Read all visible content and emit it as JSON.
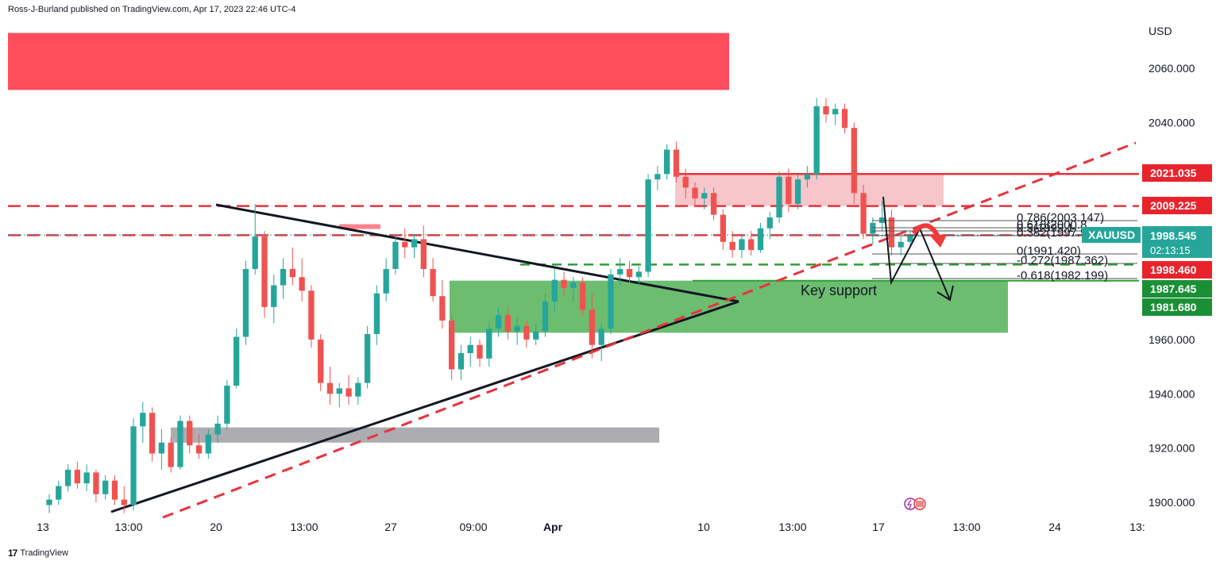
{
  "header": {
    "attribution": "Ross-J-Burland published on TradingView.com, Apr 17, 2023 22:46 UTC-4"
  },
  "footer": {
    "logo_mark": "17",
    "logo_text": "TradingView"
  },
  "colors": {
    "bull": "#26a69a",
    "bear": "#ef5350",
    "red_zone": "#ff4d5e",
    "pink_zone": "#f7c6cb",
    "green_zone": "#4caf50",
    "grey_zone": "#9e9ea3",
    "red_line": "#e8323c",
    "green_dash": "#2f9d35",
    "price_tag_red": "#e8232c",
    "price_tag_green": "#1b8f36",
    "price_tag_teal": "#26a69a"
  },
  "chart_data": {
    "type": "candlestick",
    "symbol": "XAUUSD",
    "currency": "USD",
    "current_price": "1998.545",
    "countdown": "02:13:15",
    "ylim": [
      1895,
      2070
    ],
    "y_ticks": [
      {
        "value": 2060,
        "label": "2060.000"
      },
      {
        "value": 2040,
        "label": "2040.000"
      },
      {
        "value": 1960,
        "label": "1960.000"
      },
      {
        "value": 1940,
        "label": "1940.000"
      },
      {
        "value": 1920,
        "label": "1920.000"
      },
      {
        "value": 1900,
        "label": "1900.000"
      }
    ],
    "x_ticks": [
      {
        "label": "13",
        "bold": false
      },
      {
        "label": "13:00",
        "bold": false
      },
      {
        "label": "20",
        "bold": false
      },
      {
        "label": "13:00",
        "bold": false
      },
      {
        "label": "27",
        "bold": false
      },
      {
        "label": "09:00",
        "bold": false
      },
      {
        "label": "Apr",
        "bold": true
      },
      {
        "label": "10",
        "bold": false
      },
      {
        "label": "13:00",
        "bold": false
      },
      {
        "label": "17",
        "bold": false
      },
      {
        "label": "13:00",
        "bold": false
      },
      {
        "label": "24",
        "bold": false
      },
      {
        "label": "13:",
        "bold": false
      }
    ],
    "price_tags": [
      {
        "label": "2021.035",
        "value": 2021.035,
        "color": "red"
      },
      {
        "label": "2009.225",
        "value": 2009.225,
        "color": "red"
      },
      {
        "label": "1998.460",
        "value": 1998.46,
        "color": "red"
      },
      {
        "label": "1987.645",
        "value": 1987.645,
        "color": "green"
      },
      {
        "label": "1981.680",
        "value": 1981.68,
        "color": "green"
      }
    ],
    "fib_levels": [
      {
        "ratio": "0.786",
        "price": "2003.147",
        "text": "0.786(2003.147)"
      },
      {
        "ratio": "0.618",
        "price": "2000.8",
        "text": "0.618(2000.8"
      },
      {
        "ratio": "0.5",
        "price": "1999.1",
        "text": "0.5(1999.1"
      },
      {
        "ratio": "0.382",
        "price": "1997.5",
        "text": "0.382(1997.5"
      },
      {
        "ratio": "0",
        "price": "1991.420",
        "text": "0(1991.420)"
      },
      {
        "ratio": "-0.272",
        "price": "1987.362",
        "text": "-0.272(1987.362)"
      },
      {
        "ratio": "-0.618",
        "price": "1982.199",
        "text": "-0.618(1982.199)"
      }
    ],
    "annotations": [
      {
        "text": "Key support"
      }
    ],
    "zones": [
      {
        "name": "supply-zone",
        "from": 2052,
        "to": 2073
      },
      {
        "name": "resistance-zone",
        "from": 2009.2,
        "to": 2021.1
      },
      {
        "name": "support-zone",
        "from": 1962.5,
        "to": 1981.7
      },
      {
        "name": "demand-zone",
        "from": 1922,
        "to": 1927.6
      }
    ],
    "horizontal_lines": [
      {
        "name": "resistance-line",
        "value": 2021.035,
        "style": "solid"
      },
      {
        "name": "red-dashed-upper",
        "value": 2009.225,
        "style": "dashed"
      },
      {
        "name": "red-dashed-lower",
        "value": 1998.46,
        "style": "dashed"
      },
      {
        "name": "green-dashed-line",
        "value": 1987.645,
        "style": "dashed"
      },
      {
        "name": "green-solid-line",
        "value": 1981.68,
        "style": "solid"
      }
    ],
    "candles": [
      {
        "o": 1899,
        "h": 1903,
        "l": 1896,
        "c": 1901
      },
      {
        "o": 1901,
        "h": 1908,
        "l": 1899,
        "c": 1906
      },
      {
        "o": 1906,
        "h": 1914,
        "l": 1904,
        "c": 1912
      },
      {
        "o": 1912,
        "h": 1915,
        "l": 1905,
        "c": 1907
      },
      {
        "o": 1907,
        "h": 1914,
        "l": 1904,
        "c": 1911
      },
      {
        "o": 1911,
        "h": 1912,
        "l": 1900,
        "c": 1903
      },
      {
        "o": 1903,
        "h": 1910,
        "l": 1901,
        "c": 1908
      },
      {
        "o": 1908,
        "h": 1910,
        "l": 1899,
        "c": 1901
      },
      {
        "o": 1901,
        "h": 1906,
        "l": 1896,
        "c": 1899
      },
      {
        "o": 1899,
        "h": 1931,
        "l": 1897,
        "c": 1928
      },
      {
        "o": 1928,
        "h": 1937,
        "l": 1922,
        "c": 1933
      },
      {
        "o": 1933,
        "h": 1935,
        "l": 1915,
        "c": 1918
      },
      {
        "o": 1918,
        "h": 1927,
        "l": 1912,
        "c": 1922
      },
      {
        "o": 1922,
        "h": 1924,
        "l": 1911,
        "c": 1913
      },
      {
        "o": 1913,
        "h": 1932,
        "l": 1912,
        "c": 1930
      },
      {
        "o": 1930,
        "h": 1932,
        "l": 1918,
        "c": 1921
      },
      {
        "o": 1921,
        "h": 1925,
        "l": 1916,
        "c": 1918
      },
      {
        "o": 1918,
        "h": 1927,
        "l": 1916,
        "c": 1925
      },
      {
        "o": 1925,
        "h": 1932,
        "l": 1922,
        "c": 1929
      },
      {
        "o": 1929,
        "h": 1945,
        "l": 1927,
        "c": 1943
      },
      {
        "o": 1943,
        "h": 1964,
        "l": 1942,
        "c": 1961
      },
      {
        "o": 1961,
        "h": 1989,
        "l": 1958,
        "c": 1986
      },
      {
        "o": 1986,
        "h": 2010,
        "l": 1984,
        "c": 1998
      },
      {
        "o": 1998,
        "h": 2000,
        "l": 1968,
        "c": 1972
      },
      {
        "o": 1972,
        "h": 1984,
        "l": 1966,
        "c": 1980
      },
      {
        "o": 1980,
        "h": 1990,
        "l": 1975,
        "c": 1986
      },
      {
        "o": 1986,
        "h": 1994,
        "l": 1980,
        "c": 1983
      },
      {
        "o": 1983,
        "h": 1990,
        "l": 1974,
        "c": 1978
      },
      {
        "o": 1978,
        "h": 1980,
        "l": 1957,
        "c": 1960
      },
      {
        "o": 1960,
        "h": 1962,
        "l": 1941,
        "c": 1944
      },
      {
        "o": 1944,
        "h": 1950,
        "l": 1936,
        "c": 1940
      },
      {
        "o": 1940,
        "h": 1944,
        "l": 1935,
        "c": 1942
      },
      {
        "o": 1942,
        "h": 1947,
        "l": 1936,
        "c": 1939
      },
      {
        "o": 1939,
        "h": 1946,
        "l": 1936,
        "c": 1944
      },
      {
        "o": 1944,
        "h": 1965,
        "l": 1942,
        "c": 1962
      },
      {
        "o": 1962,
        "h": 1980,
        "l": 1958,
        "c": 1977
      },
      {
        "o": 1977,
        "h": 1990,
        "l": 1974,
        "c": 1986
      },
      {
        "o": 1986,
        "h": 1998,
        "l": 1984,
        "c": 1996
      },
      {
        "o": 1996,
        "h": 2001,
        "l": 1990,
        "c": 1994
      },
      {
        "o": 1994,
        "h": 1999,
        "l": 1990,
        "c": 1997
      },
      {
        "o": 1997,
        "h": 2002,
        "l": 1983,
        "c": 1986
      },
      {
        "o": 1986,
        "h": 1990,
        "l": 1974,
        "c": 1976
      },
      {
        "o": 1976,
        "h": 1982,
        "l": 1964,
        "c": 1967
      },
      {
        "o": 1967,
        "h": 1969,
        "l": 1945,
        "c": 1949
      },
      {
        "o": 1949,
        "h": 1958,
        "l": 1945,
        "c": 1955
      },
      {
        "o": 1955,
        "h": 1961,
        "l": 1950,
        "c": 1958
      },
      {
        "o": 1958,
        "h": 1960,
        "l": 1950,
        "c": 1953
      },
      {
        "o": 1953,
        "h": 1966,
        "l": 1950,
        "c": 1964
      },
      {
        "o": 1964,
        "h": 1972,
        "l": 1961,
        "c": 1969
      },
      {
        "o": 1969,
        "h": 1972,
        "l": 1960,
        "c": 1963
      },
      {
        "o": 1963,
        "h": 1968,
        "l": 1958,
        "c": 1965
      },
      {
        "o": 1965,
        "h": 1967,
        "l": 1957,
        "c": 1960
      },
      {
        "o": 1960,
        "h": 1966,
        "l": 1958,
        "c": 1963
      },
      {
        "o": 1963,
        "h": 1977,
        "l": 1961,
        "c": 1974
      },
      {
        "o": 1974,
        "h": 1986,
        "l": 1970,
        "c": 1982
      },
      {
        "o": 1982,
        "h": 1985,
        "l": 1976,
        "c": 1979
      },
      {
        "o": 1979,
        "h": 1983,
        "l": 1974,
        "c": 1981
      },
      {
        "o": 1981,
        "h": 1983,
        "l": 1969,
        "c": 1971
      },
      {
        "o": 1971,
        "h": 1977,
        "l": 1953,
        "c": 1958
      },
      {
        "o": 1958,
        "h": 1966,
        "l": 1952,
        "c": 1964
      },
      {
        "o": 1964,
        "h": 1986,
        "l": 1962,
        "c": 1984
      },
      {
        "o": 1984,
        "h": 1990,
        "l": 1980,
        "c": 1986
      },
      {
        "o": 1986,
        "h": 1989,
        "l": 1981,
        "c": 1983
      },
      {
        "o": 1983,
        "h": 1987,
        "l": 1980,
        "c": 1985
      },
      {
        "o": 1985,
        "h": 2021,
        "l": 1983,
        "c": 2019
      },
      {
        "o": 2019,
        "h": 2024,
        "l": 2015,
        "c": 2021
      },
      {
        "o": 2021,
        "h": 2032,
        "l": 2019,
        "c": 2030
      },
      {
        "o": 2030,
        "h": 2033,
        "l": 2018,
        "c": 2020
      },
      {
        "o": 2020,
        "h": 2023,
        "l": 2012,
        "c": 2016
      },
      {
        "o": 2016,
        "h": 2018,
        "l": 2009,
        "c": 2012
      },
      {
        "o": 2012,
        "h": 2016,
        "l": 2008,
        "c": 2014
      },
      {
        "o": 2014,
        "h": 2016,
        "l": 2004,
        "c": 2006
      },
      {
        "o": 2006,
        "h": 2008,
        "l": 1993,
        "c": 1996
      },
      {
        "o": 1996,
        "h": 2000,
        "l": 1990,
        "c": 1993
      },
      {
        "o": 1993,
        "h": 1999,
        "l": 1990,
        "c": 1997
      },
      {
        "o": 1997,
        "h": 2000,
        "l": 1991,
        "c": 1993
      },
      {
        "o": 1993,
        "h": 2003,
        "l": 1992,
        "c": 2001
      },
      {
        "o": 2001,
        "h": 2007,
        "l": 1997,
        "c": 2005
      },
      {
        "o": 2005,
        "h": 2022,
        "l": 2003,
        "c": 2020
      },
      {
        "o": 2020,
        "h": 2023,
        "l": 2007,
        "c": 2010
      },
      {
        "o": 2010,
        "h": 2021,
        "l": 2008,
        "c": 2019
      },
      {
        "o": 2019,
        "h": 2024,
        "l": 2016,
        "c": 2021
      },
      {
        "o": 2021,
        "h": 2049,
        "l": 2019,
        "c": 2046
      },
      {
        "o": 2046,
        "h": 2049,
        "l": 2040,
        "c": 2043
      },
      {
        "o": 2043,
        "h": 2047,
        "l": 2039,
        "c": 2045
      },
      {
        "o": 2045,
        "h": 2047,
        "l": 2036,
        "c": 2038
      },
      {
        "o": 2038,
        "h": 2040,
        "l": 2010,
        "c": 2014
      },
      {
        "o": 2014,
        "h": 2017,
        "l": 1997,
        "c": 1999
      },
      {
        "o": 1999,
        "h": 2005,
        "l": 1995,
        "c": 2003
      },
      {
        "o": 2003,
        "h": 2011,
        "l": 2000,
        "c": 2005
      },
      {
        "o": 2005,
        "h": 2008,
        "l": 1991,
        "c": 1994
      },
      {
        "o": 1994,
        "h": 1998,
        "l": 1991,
        "c": 1996
      },
      {
        "o": 1996,
        "h": 2000,
        "l": 1994,
        "c": 1998.5
      }
    ]
  }
}
